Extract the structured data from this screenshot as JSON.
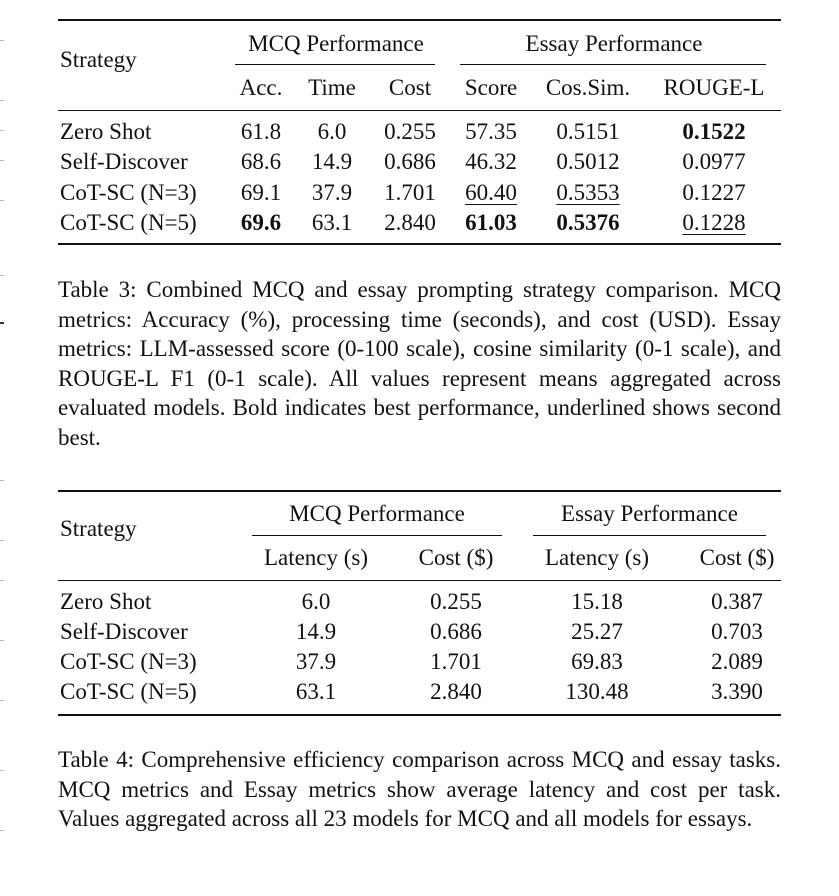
{
  "table3": {
    "strategy_header": "Strategy",
    "group_headers": [
      "MCQ Performance",
      "Essay Performance"
    ],
    "sub_headers": [
      "Acc.",
      "Time",
      "Cost",
      "Score",
      "Cos.Sim.",
      "ROUGE-L"
    ],
    "rows": [
      {
        "strategy": "Zero Shot",
        "cells": [
          "61.8",
          "6.0",
          "0.255",
          "57.35",
          "0.5151",
          "0.1522"
        ]
      },
      {
        "strategy": "Self-Discover",
        "cells": [
          "68.6",
          "14.9",
          "0.686",
          "46.32",
          "0.5012",
          "0.0977"
        ]
      },
      {
        "strategy": "CoT-SC (N=3)",
        "cells": [
          "69.1",
          "37.9",
          "1.701",
          "60.40",
          "0.5353",
          "0.1227"
        ]
      },
      {
        "strategy": "CoT-SC (N=5)",
        "cells": [
          "69.6",
          "63.1",
          "2.840",
          "61.03",
          "0.5376",
          "0.1228"
        ]
      }
    ],
    "caption": "Table 3: Combined MCQ and essay prompting strategy comparison. MCQ metrics: Accuracy (%), processing time (seconds), and cost (USD). Essay metrics: LLM-assessed score (0-100 scale), cosine similarity (0-1 scale), and ROUGE-L F1 (0-1 scale). All values represent means aggregated across evaluated models. Bold indicates best performance, underlined shows second best."
  },
  "table4": {
    "strategy_header": "Strategy",
    "group_headers": [
      "MCQ Performance",
      "Essay Performance"
    ],
    "sub_headers": [
      "Latency (s)",
      "Cost ($)",
      "Latency (s)",
      "Cost ($)"
    ],
    "rows": [
      {
        "strategy": "Zero Shot",
        "cells": [
          "6.0",
          "0.255",
          "15.18",
          "0.387"
        ]
      },
      {
        "strategy": "Self-Discover",
        "cells": [
          "14.9",
          "0.686",
          "25.27",
          "0.703"
        ]
      },
      {
        "strategy": "CoT-SC (N=3)",
        "cells": [
          "37.9",
          "1.701",
          "69.83",
          "2.089"
        ]
      },
      {
        "strategy": "CoT-SC (N=5)",
        "cells": [
          "63.1",
          "2.840",
          "130.48",
          "3.390"
        ]
      }
    ],
    "caption": "Table 4: Comprehensive efficiency comparison across MCQ and essay tasks. MCQ metrics and Essay metrics show average latency and cost per task. Values aggregated across all 23 models for MCQ and all models for essays."
  }
}
